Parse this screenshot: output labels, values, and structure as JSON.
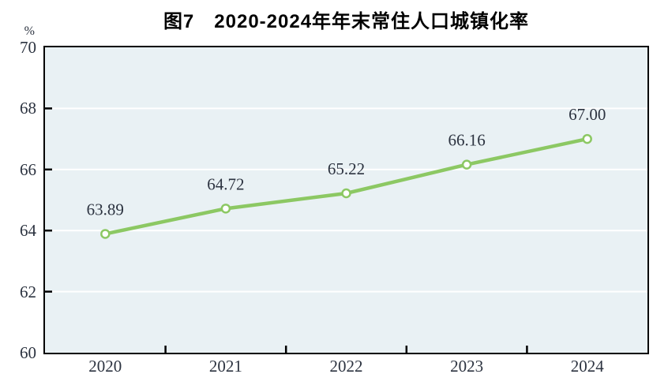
{
  "title": "图7　2020-2024年年末常住人口城镇化率",
  "chart_data": {
    "type": "line",
    "title": "图7　2020-2024年年末常住人口城镇化率",
    "unit_label": "%",
    "categories": [
      "2020",
      "2021",
      "2022",
      "2023",
      "2024"
    ],
    "series": [
      {
        "name": "年末常住人口城镇化率",
        "values": [
          63.89,
          64.72,
          65.22,
          66.16,
          67.0
        ],
        "point_labels": [
          "63.89",
          "64.72",
          "65.22",
          "66.16",
          "67.00"
        ]
      }
    ],
    "xlabel": "",
    "ylabel": "%",
    "ylim": [
      60,
      70
    ],
    "yticks": [
      60,
      62,
      64,
      66,
      68,
      70
    ],
    "grid": true,
    "legend_position": "none",
    "colors": {
      "line": "#8cc863",
      "marker_fill": "#ffffff",
      "plot_background": "#e9f1f4",
      "gridline": "#ffffff",
      "axis": "#000000",
      "text": "#2c3340",
      "title_text": "#000000"
    }
  }
}
